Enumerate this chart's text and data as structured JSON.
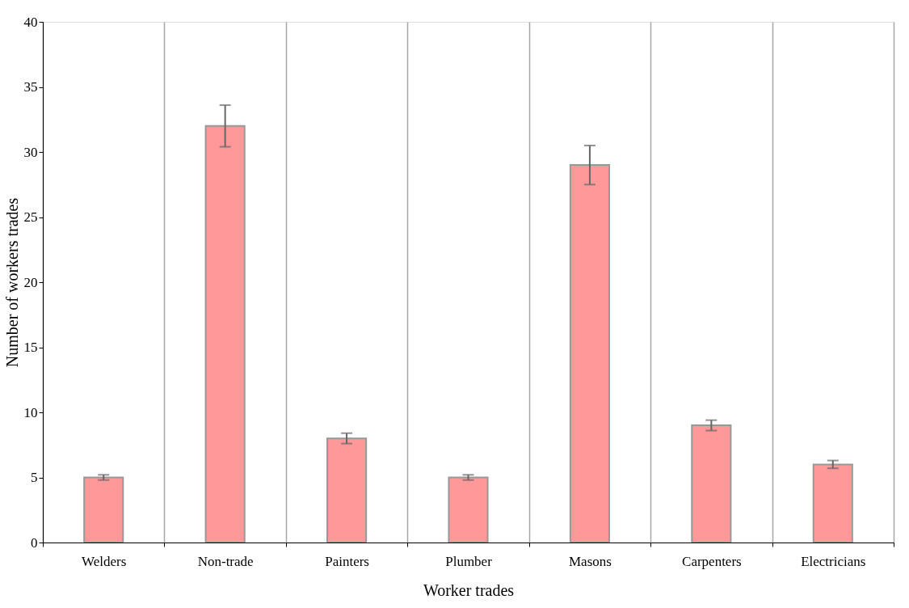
{
  "chart_data": {
    "type": "bar",
    "xlabel": "Worker trades",
    "ylabel": "Number of workers trades",
    "categories": [
      "Welders",
      "Non-trade",
      "Painters",
      "Plumber",
      "Masons",
      "Carpenters",
      "Electricians"
    ],
    "values": [
      5,
      32,
      8,
      5,
      29,
      9,
      6
    ],
    "errors": [
      0.2,
      1.6,
      0.4,
      0.2,
      1.5,
      0.4,
      0.3
    ],
    "color": "#ff0000",
    "ylim": [
      0,
      40
    ],
    "yticks": [
      0,
      5,
      10,
      15,
      20,
      25,
      30,
      35,
      40
    ],
    "grid": "x"
  }
}
